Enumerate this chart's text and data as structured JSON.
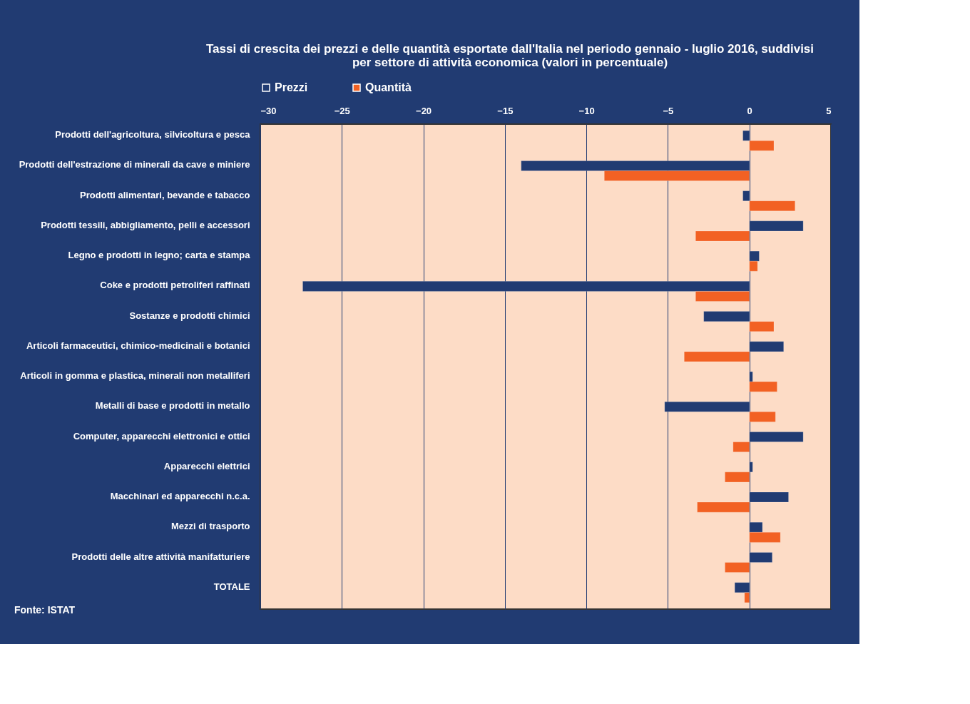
{
  "chart_data": {
    "type": "bar",
    "orientation": "horizontal",
    "title": "Tassi di crescita dei prezzi e delle quantità esportate dall'Italia nel periodo gennaio - luglio 2016, suddivisi per settore di attività economica (valori in percentuale)",
    "categories": [
      "Prodotti dell'agricoltura, silvicoltura e pesca",
      "Prodotti dell'estrazione di minerali da cave e miniere",
      "Prodotti alimentari, bevande e tabacco",
      "Prodotti tessili, abbigliamento, pelli e accessori",
      "Legno e prodotti in legno; carta e stampa",
      "Coke e prodotti petroliferi raffinati",
      "Sostanze e prodotti chimici",
      "Articoli farmaceutici, chimico-medicinali e botanici",
      "Articoli in gomma e plastica, minerali non metalliferi",
      "Metalli di base e prodotti in metallo",
      "Computer, apparecchi elettronici e ottici",
      "Apparecchi elettrici",
      "Macchinari ed apparecchi n.c.a.",
      "Mezzi di trasporto",
      "Prodotti delle altre attività manifatturiere",
      "TOTALE"
    ],
    "series": [
      {
        "name": "Prezzi",
        "color": "#213b72",
        "values": [
          -0.4,
          -14.0,
          -0.4,
          3.3,
          0.6,
          -27.4,
          -2.8,
          2.1,
          0.2,
          -5.2,
          3.3,
          0.2,
          2.4,
          0.8,
          1.4,
          -0.9
        ]
      },
      {
        "name": "Quantità",
        "color": "#f26123",
        "values": [
          1.5,
          -8.9,
          2.8,
          -3.3,
          0.5,
          -3.3,
          1.5,
          -4.0,
          1.7,
          1.6,
          -1.0,
          -1.5,
          -3.2,
          1.9,
          -1.5,
          -0.3
        ]
      }
    ],
    "xlim": [
      -30,
      5
    ],
    "xticks": [
      -30,
      -25,
      -20,
      -15,
      -10,
      -5,
      0,
      5
    ],
    "grid": "x",
    "legend": "top",
    "annotations": [
      "Fonte: ISTAT"
    ]
  }
}
